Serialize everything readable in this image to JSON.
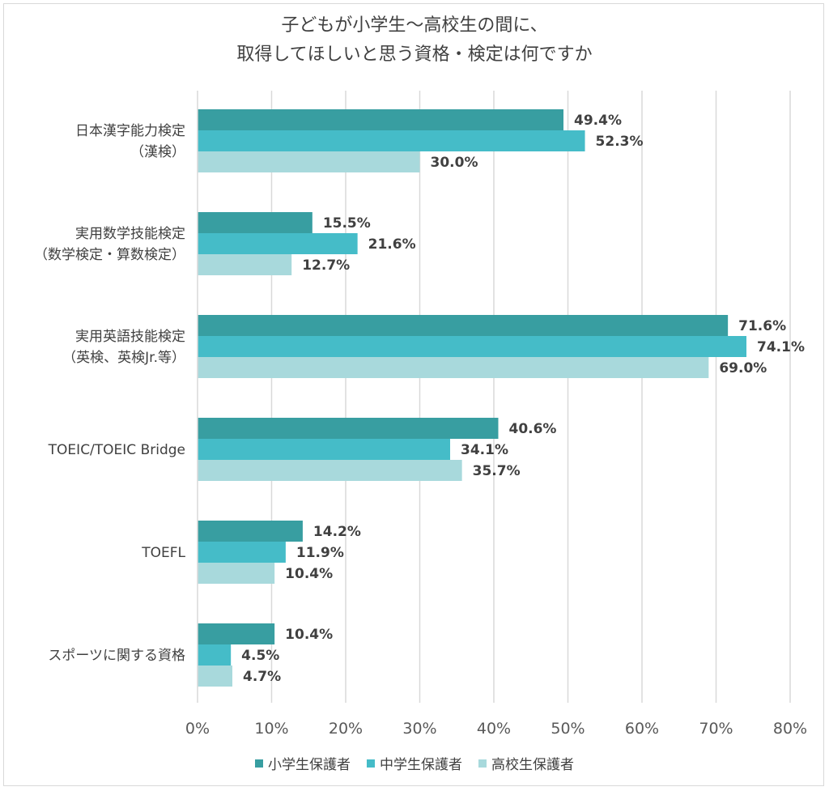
{
  "chart_data": {
    "type": "bar",
    "orientation": "horizontal",
    "title": [
      "子どもが小学生～高校生の間に、",
      "取得してほしいと思う資格・検定は何ですか"
    ],
    "categories": [
      [
        "日本漢字能力検定",
        "（漢検）"
      ],
      [
        "実用数学技能検定",
        "（数学検定・算数検定）"
      ],
      [
        "実用英語技能検定",
        "（英検、英検Jr.等）"
      ],
      [
        "TOEIC/TOEIC Bridge"
      ],
      [
        "TOEFL"
      ],
      [
        "スポーツに関する資格"
      ]
    ],
    "series": [
      {
        "name": "小学生保護者",
        "color": "#389ea1",
        "values": [
          49.4,
          15.5,
          71.6,
          40.6,
          14.2,
          10.4
        ],
        "labels": [
          "49.4%",
          "15.5%",
          "71.6%",
          "40.6%",
          "14.2%",
          "10.4%"
        ]
      },
      {
        "name": "中学生保護者",
        "color": "#45bcc8",
        "values": [
          52.3,
          21.6,
          74.1,
          34.1,
          11.9,
          4.5
        ],
        "labels": [
          "52.3%",
          "21.6%",
          "74.1%",
          "34.1%",
          "11.9%",
          "4.5%"
        ]
      },
      {
        "name": "高校生保護者",
        "color": "#a8d9dc",
        "values": [
          30.0,
          12.7,
          69.0,
          35.7,
          10.4,
          4.7
        ],
        "labels": [
          "30.0%",
          "12.7%",
          "69.0%",
          "35.7%",
          "10.4%",
          "4.7%"
        ]
      }
    ],
    "xlim": [
      0,
      80
    ],
    "xticks": [
      0,
      10,
      20,
      30,
      40,
      50,
      60,
      70,
      80
    ],
    "xtick_labels": [
      "0%",
      "10%",
      "20%",
      "30%",
      "40%",
      "50%",
      "60%",
      "70%",
      "80%"
    ],
    "grid": "vertical",
    "legend_position": "bottom"
  },
  "colors": {
    "grid": "#d9d9d9",
    "text": "#404040",
    "axis": "#595959"
  }
}
